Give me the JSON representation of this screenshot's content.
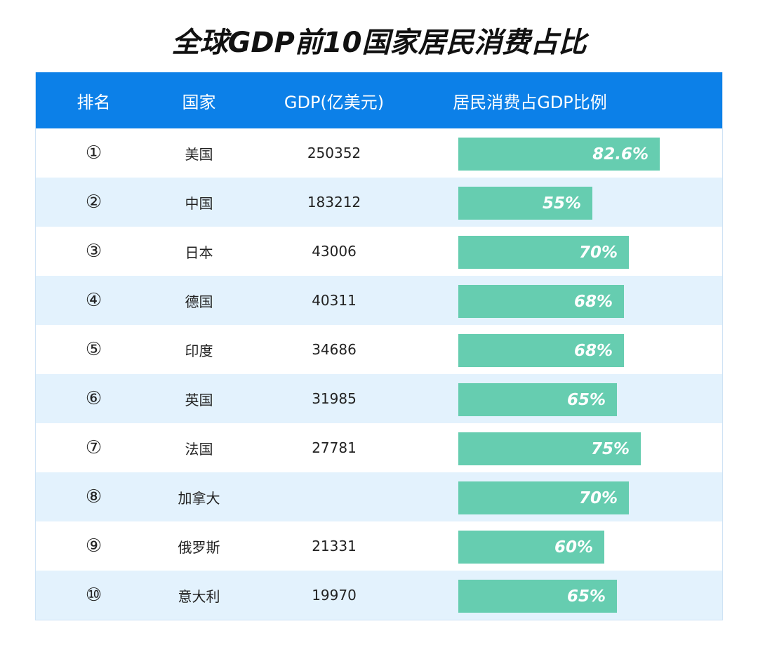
{
  "title": "全球GDP前10国家居民消费占比",
  "colors": {
    "header_bg": "#0c80e8",
    "row_alt_bg": "#e3f2fd",
    "bar": "#66cdb0",
    "bar_text": "#ffffff"
  },
  "table": {
    "headers": {
      "rank": "排名",
      "country": "国家",
      "gdp": "GDP(亿美元)",
      "ratio": "居民消费占GDP比例"
    },
    "rows": [
      {
        "rank": "①",
        "country": "美国",
        "gdp": "250352",
        "ratio": "82.6%",
        "value": 82.6
      },
      {
        "rank": "②",
        "country": "中国",
        "gdp": "183212",
        "ratio": "55%",
        "value": 55
      },
      {
        "rank": "③",
        "country": "日本",
        "gdp": "43006",
        "ratio": "70%",
        "value": 70
      },
      {
        "rank": "④",
        "country": "德国",
        "gdp": "40311",
        "ratio": "68%",
        "value": 68
      },
      {
        "rank": "⑤",
        "country": "印度",
        "gdp": "34686",
        "ratio": "68%",
        "value": 68
      },
      {
        "rank": "⑥",
        "country": "英国",
        "gdp": "31985",
        "ratio": "65%",
        "value": 65
      },
      {
        "rank": "⑦",
        "country": "法国",
        "gdp": "27781",
        "ratio": "75%",
        "value": 75
      },
      {
        "rank": "⑧",
        "country": "加拿大",
        "gdp": "",
        "ratio": "70%",
        "value": 70
      },
      {
        "rank": "⑨",
        "country": "俄罗斯",
        "gdp": "21331",
        "ratio": "60%",
        "value": 60
      },
      {
        "rank": "⑩",
        "country": "意大利",
        "gdp": "19970",
        "ratio": "65%",
        "value": 65
      }
    ]
  },
  "chart_data": {
    "type": "bar",
    "title": "全球GDP前10国家居民消费占比",
    "xlabel": "",
    "ylabel": "居民消费占GDP比例",
    "orientation": "horizontal",
    "categories": [
      "美国",
      "中国",
      "日本",
      "德国",
      "印度",
      "英国",
      "法国",
      "加拿大",
      "俄罗斯",
      "意大利"
    ],
    "series": [
      {
        "name": "居民消费占GDP比例 (%)",
        "values": [
          82.6,
          55,
          70,
          68,
          68,
          65,
          75,
          70,
          60,
          65
        ]
      },
      {
        "name": "GDP(亿美元)",
        "values": [
          250352,
          183212,
          43006,
          40311,
          34686,
          31985,
          27781,
          null,
          21331,
          19970
        ]
      }
    ],
    "grid": false,
    "legend": "none"
  }
}
